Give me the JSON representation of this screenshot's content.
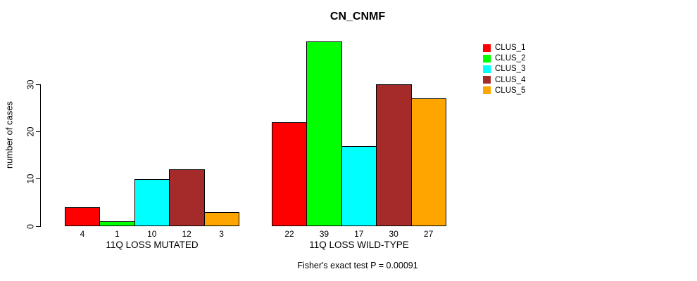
{
  "chart_data": {
    "type": "bar",
    "title": "CN_CNMF",
    "ylabel": "number of cases",
    "xlabel": "",
    "annotation": "Fisher's exact test P = 0.00091",
    "categories": [
      "11Q LOSS MUTATED",
      "11Q LOSS WILD-TYPE"
    ],
    "series": [
      {
        "name": "CLUS_1",
        "color": "#FF0000",
        "values": [
          4,
          22
        ]
      },
      {
        "name": "CLUS_2",
        "color": "#00FF00",
        "values": [
          1,
          39
        ]
      },
      {
        "name": "CLUS_3",
        "color": "#00FFFF",
        "values": [
          10,
          17
        ]
      },
      {
        "name": "CLUS_4",
        "color": "#A52A2A",
        "values": [
          12,
          30
        ]
      },
      {
        "name": "CLUS_5",
        "color": "#FFA500",
        "values": [
          3,
          27
        ]
      }
    ],
    "yticks": [
      0,
      10,
      20,
      30
    ],
    "ylim": [
      0,
      41
    ],
    "grid": false,
    "legend_position": "top-right",
    "bar_border_color": "#000000",
    "background_color": "#FFFFFF",
    "bar_value_labels_shown": true
  }
}
